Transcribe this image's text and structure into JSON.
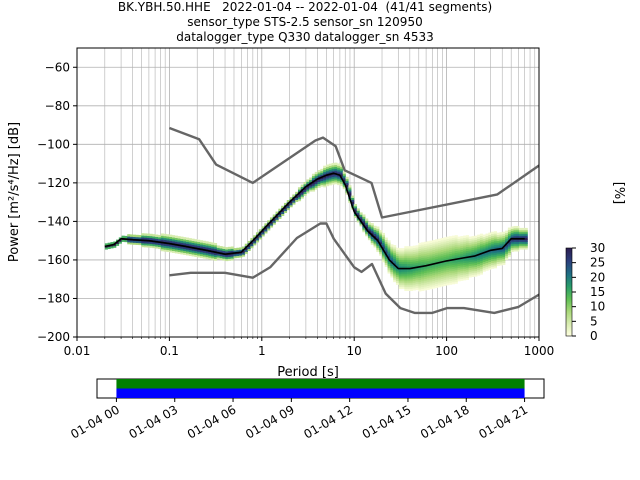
{
  "title_lines": [
    "BK.YBH.50.HHE   2022-01-04 -- 2022-01-04  (41/41 segments)",
    "sensor_type STS-2.5 sensor_sn 120950",
    "datalogger_type Q330 datalogger_sn 4533"
  ],
  "chart_data": [
    {
      "type": "heatmap",
      "title": "BK.YBH.50.HHE   2022-01-04 -- 2022-01-04  (41/41 segments)",
      "xlabel": "Period [s]",
      "ylabel": "Power [m²/s⁴/Hz] [dB]",
      "xscale": "log",
      "xlim": [
        0.01,
        1000
      ],
      "ylim": [
        -200,
        -50
      ],
      "grid": true,
      "x_ticks": [
        0.01,
        0.1,
        1,
        10,
        100,
        1000
      ],
      "x_tick_labels": [
        "0.01",
        "0.1",
        "1",
        "10",
        "100",
        "1000"
      ],
      "y_ticks": [
        -200,
        -180,
        -160,
        -140,
        -120,
        -100,
        -80,
        -60
      ],
      "y_tick_labels": [
        "−200",
        "−180",
        "−160",
        "−140",
        "−120",
        "−100",
        "−80",
        "−60"
      ],
      "colorbar": {
        "label": "[%]",
        "range": [
          0,
          30
        ],
        "ticks": [
          0,
          5,
          10,
          15,
          20,
          25,
          30
        ],
        "tick_labels": [
          "0",
          "5",
          "10",
          "15",
          "20",
          "25",
          "30"
        ],
        "colormap_stops": [
          "#ffffe0",
          "#d8ecb0",
          "#a9d879",
          "#5fbf55",
          "#2a9d6a",
          "#1e6f83",
          "#2b3f7c",
          "#2c1d4f"
        ]
      },
      "series": [
        {
          "kind": "noise-model",
          "color": "#666666",
          "x": [
            0.1,
            0.21,
            0.32,
            0.8,
            3.8,
            4.6,
            6.3,
            7.9,
            15.4,
            20,
            354.8,
            1000
          ],
          "y": [
            -91.5,
            -97.4,
            -110.5,
            -120,
            -98,
            -96.5,
            -101,
            -113.5,
            -120,
            -138,
            -126,
            -111
          ]
        },
        {
          "kind": "noise-model",
          "color": "#666666",
          "x": [
            0.1,
            0.17,
            0.4,
            0.8,
            1.24,
            2.4,
            4.3,
            5,
            6,
            10,
            12,
            15.6,
            21.9,
            31.6,
            45,
            70,
            101,
            154,
            328,
            600,
            1000
          ],
          "y": [
            -168,
            -166.7,
            -166.7,
            -169.2,
            -163.7,
            -148.6,
            -141.1,
            -141.1,
            -149,
            -163.8,
            -166.2,
            -162.1,
            -177.5,
            -185,
            -187.5,
            -187.5,
            -185,
            -185,
            -187.5,
            -184.4,
            -178
          ]
        },
        {
          "kind": "mode",
          "color": "#000000",
          "x": [
            0.02,
            0.025,
            0.03,
            0.04,
            0.06,
            0.1,
            0.15,
            0.25,
            0.4,
            0.6,
            0.8,
            1.2,
            2,
            3,
            4,
            5,
            6,
            7,
            8,
            10,
            14,
            18,
            24,
            30,
            40,
            60,
            100,
            150,
            200,
            300,
            400,
            500,
            700
          ],
          "y": [
            -153,
            -152,
            -149,
            -149.5,
            -150,
            -151.5,
            -153,
            -155,
            -157,
            -156,
            -150,
            -141,
            -130,
            -122,
            -118,
            -116,
            -115,
            -116,
            -121,
            -135,
            -145,
            -150,
            -160,
            -164.5,
            -164.5,
            -163,
            -160.5,
            -159,
            -158,
            -155,
            -154,
            -149,
            -149
          ]
        },
        {
          "kind": "histogram",
          "x": [
            0.02,
            0.025,
            0.03,
            0.04,
            0.06,
            0.1,
            0.15,
            0.25,
            0.4,
            0.6,
            0.8,
            1.2,
            2,
            3,
            4,
            5,
            6,
            7,
            8,
            10,
            14,
            18,
            24,
            30,
            40,
            60,
            100,
            150,
            200,
            300,
            400,
            500,
            700
          ],
          "y": [
            -153,
            -152,
            -149,
            -149.5,
            -150,
            -151.5,
            -153,
            -155,
            -157,
            -156,
            -150,
            -141,
            -130,
            -122,
            -118,
            -116,
            -115,
            -116,
            -121,
            -135,
            -145,
            -150,
            -160,
            -164.5,
            -164.5,
            -163,
            -160.5,
            -159,
            -158,
            -155,
            -154,
            -149,
            -149
          ],
          "spread_db": [
            1,
            1,
            1,
            2,
            3,
            4,
            4,
            4,
            3,
            2,
            2,
            2,
            2,
            3,
            4,
            5,
            5,
            5,
            4,
            3,
            4,
            6,
            8,
            10,
            11,
            12,
            12,
            11,
            10,
            9,
            8,
            6,
            5
          ]
        }
      ]
    },
    {
      "type": "timeline",
      "x_tick_labels": [
        "01-04 00",
        "01-04 03",
        "01-04 06",
        "01-04 09",
        "01-04 12",
        "01-04 15",
        "01-04 18",
        "01-04 21"
      ],
      "x_ticks_hours": [
        0,
        3,
        6,
        9,
        12,
        15,
        18,
        21
      ],
      "xlim_hours": [
        -1,
        22
      ],
      "coverage": [
        {
          "start_hour": 0,
          "end_hour": 21.0,
          "color": "#008000"
        },
        {
          "start_hour": 0,
          "end_hour": 21.0,
          "color": "#0000ff"
        }
      ]
    }
  ]
}
